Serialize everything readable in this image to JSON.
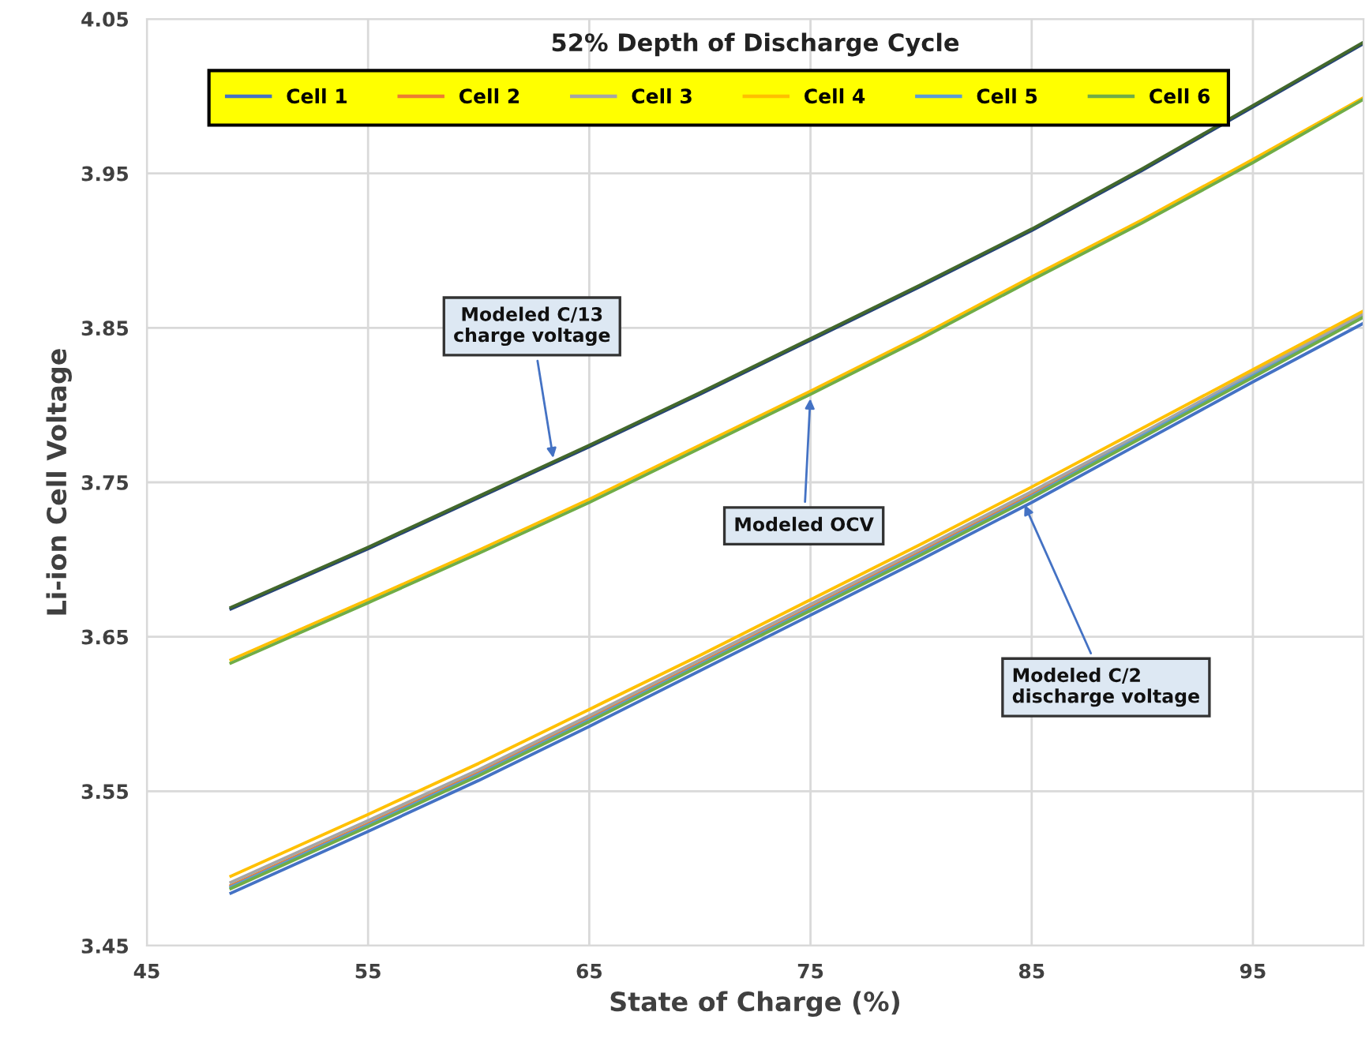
{
  "chart_data": {
    "type": "line",
    "title": "52% Depth of Discharge Cycle",
    "xlabel": "State of Charge (%)",
    "ylabel": "Li-ion Cell Voltage",
    "x": [
      48.8,
      55,
      60,
      65,
      70,
      75,
      80,
      85,
      90,
      95,
      100
    ],
    "series": [
      {
        "name": "Cell 1",
        "color": "#4472c4",
        "values": [
          3.484,
          3.524,
          3.557,
          3.592,
          3.628,
          3.664,
          3.7,
          3.737,
          3.776,
          3.815,
          3.853
        ]
      },
      {
        "name": "Cell 2",
        "color": "#ed7d31",
        "values": [
          3.489,
          3.529,
          3.562,
          3.597,
          3.633,
          3.669,
          3.705,
          3.742,
          3.781,
          3.82,
          3.858
        ]
      },
      {
        "name": "Cell 3",
        "color": "#a5a5a5",
        "values": [
          3.491,
          3.531,
          3.564,
          3.599,
          3.635,
          3.671,
          3.707,
          3.744,
          3.782,
          3.821,
          3.859
        ]
      },
      {
        "name": "Cell 4",
        "color": "#ffc000",
        "values": [
          3.495,
          3.535,
          3.568,
          3.603,
          3.638,
          3.674,
          3.71,
          3.747,
          3.785,
          3.823,
          3.861
        ]
      },
      {
        "name": "Cell 5",
        "color": "#5b9bd5",
        "values": [
          3.488,
          3.528,
          3.561,
          3.596,
          3.632,
          3.668,
          3.704,
          3.741,
          3.78,
          3.819,
          3.857
        ]
      },
      {
        "name": "Cell 6",
        "color": "#70ad47",
        "values": [
          3.487,
          3.527,
          3.56,
          3.595,
          3.631,
          3.667,
          3.703,
          3.74,
          3.779,
          3.818,
          3.857
        ]
      },
      {
        "color": "#ffc000",
        "values": [
          3.635,
          3.674,
          3.706,
          3.739,
          3.774,
          3.809,
          3.845,
          3.883,
          3.92,
          3.959,
          3.999
        ]
      },
      {
        "color": "#70ad47",
        "values": [
          3.633,
          3.672,
          3.704,
          3.737,
          3.772,
          3.807,
          3.843,
          3.881,
          3.918,
          3.957,
          3.998
        ]
      },
      {
        "color": "#264478",
        "values": [
          3.668,
          3.707,
          3.74,
          3.773,
          3.807,
          3.842,
          3.877,
          3.913,
          3.952,
          3.993,
          4.034
        ]
      },
      {
        "color": "#43682b",
        "values": [
          3.669,
          3.708,
          3.741,
          3.774,
          3.808,
          3.843,
          3.878,
          3.914,
          3.953,
          3.994,
          4.035
        ]
      }
    ],
    "xlim": [
      45,
      100
    ],
    "xticks": [
      45,
      55,
      65,
      75,
      85,
      95
    ],
    "ylim": [
      3.45,
      4.05
    ],
    "yticks": [
      {
        "value": 3.45,
        "label": "3.45"
      },
      {
        "value": 3.55,
        "label": "3.55"
      },
      {
        "value": 3.65,
        "label": "3.65"
      },
      {
        "value": 3.75,
        "label": "3.75"
      },
      {
        "value": 3.85,
        "label": "3.85"
      },
      {
        "value": 3.95,
        "label": "3.95"
      },
      {
        "value": 4.05,
        "label": "4.05"
      }
    ],
    "grid": true,
    "legend": "top",
    "marker": "none",
    "line_style": "solid",
    "annotations": [
      {
        "text": "Modeled C/13\ncharge voltage",
        "x": 63.4,
        "y": 3.763
      },
      {
        "text": "Modeled OCV",
        "x": 75,
        "y": 3.807
      },
      {
        "text": "Modeled C/2\ndischarge voltage",
        "x": 84.6,
        "y": 3.738
      }
    ]
  }
}
